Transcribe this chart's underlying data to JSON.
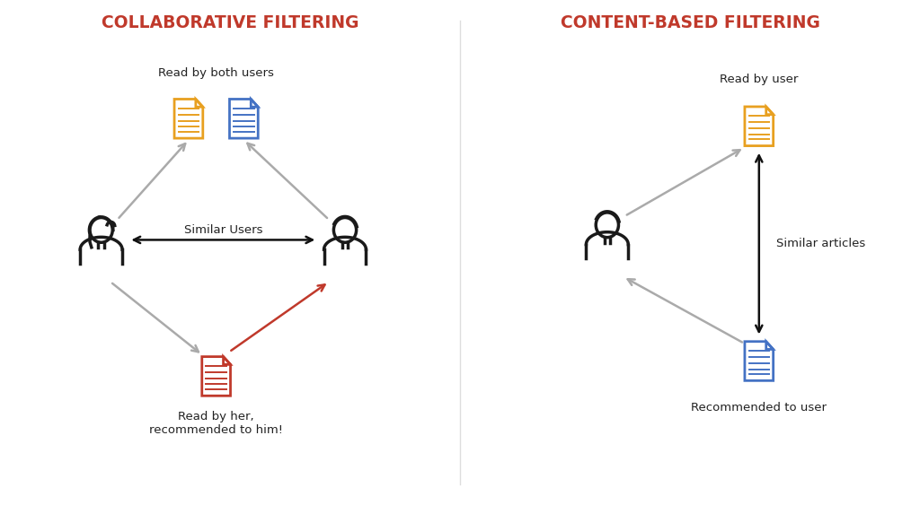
{
  "bg_color": "#ffffff",
  "title_color": "#c0392b",
  "text_color": "#222222",
  "arrow_gray": "#aaaaaa",
  "arrow_black": "#111111",
  "arrow_red": "#c0392b",
  "doc_orange": "#e8a020",
  "doc_blue": "#4472c4",
  "doc_red": "#c0392b",
  "person_color": "#1a1a1a",
  "left_title": "COLLABORATIVE FILTERING",
  "right_title": "CONTENT-BASED FILTERING",
  "label_both": "Read by both users",
  "label_similar_users": "Similar Users",
  "label_her": "Read by her,\nrecommended to him!",
  "label_read_user": "Read by user",
  "label_similar_articles": "Similar articles",
  "label_recommended": "Recommended to user",
  "divider_color": "#dddddd",
  "lw_person": 2.5,
  "lw_doc": 2.0,
  "lw_arrow": 1.8
}
